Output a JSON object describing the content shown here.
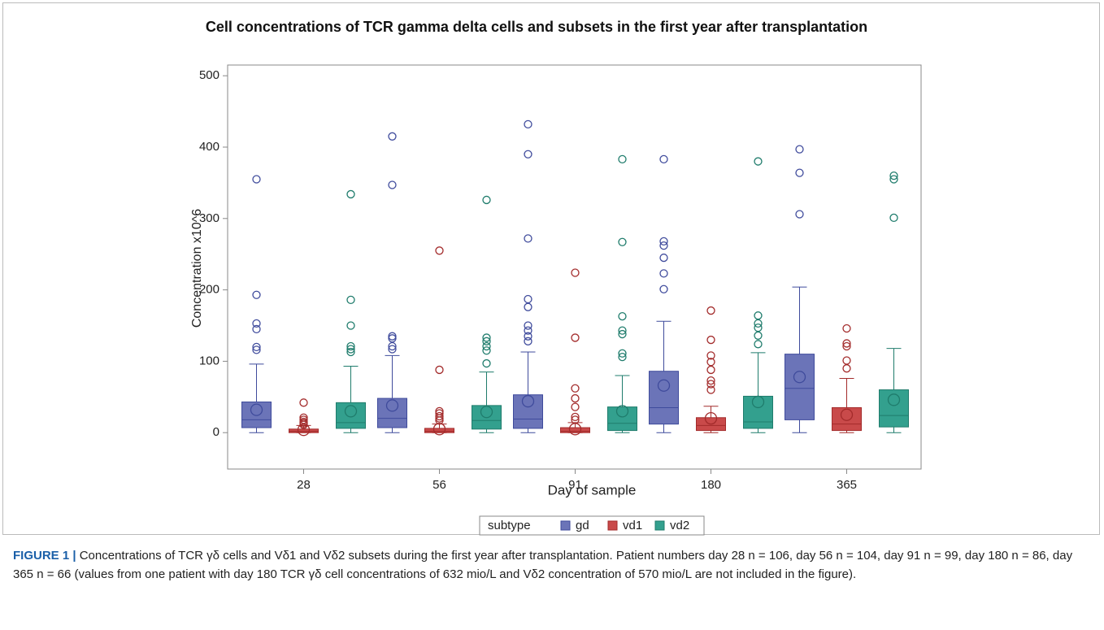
{
  "chart_data": {
    "type": "box",
    "title": "Cell concentrations of TCR gamma delta cells and subsets in the first year after transplantation",
    "x_label": "Day of sample",
    "y_label": "Concentration x10^6",
    "categories": [
      "28",
      "56",
      "91",
      "180",
      "365"
    ],
    "ylim": [
      -51,
      515
    ],
    "yticks": [
      0,
      100,
      200,
      300,
      400,
      500
    ],
    "legend_title": "subtype",
    "series": [
      {
        "name": "gd",
        "color": "#6b74b8",
        "edge": "#3f4b9c",
        "min": [
          0,
          0,
          0,
          0,
          0
        ],
        "q1": [
          7,
          7,
          6,
          12,
          18
        ],
        "median": [
          18,
          20,
          19,
          35,
          62
        ],
        "q3": [
          43,
          48,
          53,
          86,
          110
        ],
        "max": [
          96,
          108,
          113,
          156,
          204
        ],
        "mean": [
          32,
          38,
          44,
          66,
          78
        ],
        "outliers": [
          [
            355,
            193,
            153,
            145,
            120,
            116
          ],
          [
            415,
            347,
            135,
            132,
            121,
            117
          ],
          [
            432,
            390,
            272,
            187,
            176,
            150,
            143,
            135,
            128
          ],
          [
            383,
            268,
            262,
            245,
            223,
            201
          ],
          [
            397,
            364,
            306
          ]
        ]
      },
      {
        "name": "vd1",
        "color": "#c94a4a",
        "edge": "#a32b2b",
        "min": [
          0,
          0,
          0,
          0,
          0
        ],
        "q1": [
          0,
          0,
          0,
          3,
          3
        ],
        "median": [
          2,
          2,
          2,
          10,
          12
        ],
        "q3": [
          5,
          6,
          7,
          21,
          35
        ],
        "max": [
          10,
          12,
          14,
          37,
          76
        ],
        "mean": [
          4,
          5,
          5,
          20,
          25
        ],
        "outliers": [
          [
            42,
            21,
            18,
            15,
            13,
            11
          ],
          [
            255,
            88,
            30,
            27,
            23,
            20,
            17
          ],
          [
            224,
            133,
            62,
            48,
            36,
            22,
            18
          ],
          [
            171,
            130,
            108,
            99,
            88,
            73,
            68,
            60
          ],
          [
            146,
            125,
            121,
            101,
            90
          ]
        ]
      },
      {
        "name": "vd2",
        "color": "#33a08e",
        "edge": "#1f7c6c",
        "min": [
          0,
          0,
          0,
          0,
          0
        ],
        "q1": [
          6,
          5,
          3,
          6,
          8
        ],
        "median": [
          14,
          17,
          13,
          15,
          24
        ],
        "q3": [
          42,
          38,
          36,
          51,
          60
        ],
        "max": [
          93,
          85,
          80,
          112,
          118
        ],
        "mean": [
          30,
          29,
          30,
          43,
          46
        ],
        "outliers": [
          [
            334,
            186,
            150,
            121,
            117,
            113
          ],
          [
            326,
            133,
            128,
            121,
            115,
            97
          ],
          [
            383,
            267,
            163,
            143,
            138,
            111,
            106
          ],
          [
            380,
            164,
            153,
            147,
            136,
            124
          ],
          [
            360,
            355,
            301
          ]
        ]
      }
    ]
  },
  "caption": {
    "label": "FIGURE 1 |",
    "text": "Concentrations of TCR γδ cells and Vδ1 and Vδ2 subsets during the first year after transplantation. Patient numbers day 28 n = 106, day 56 n = 104, day 91 n = 99, day 180 n = 86, day 365 n = 66 (values from one patient with day 180 TCR γδ cell concentrations of 632 mio/L and Vδ2 concentration of 570 mio/L are not included in the figure)."
  }
}
